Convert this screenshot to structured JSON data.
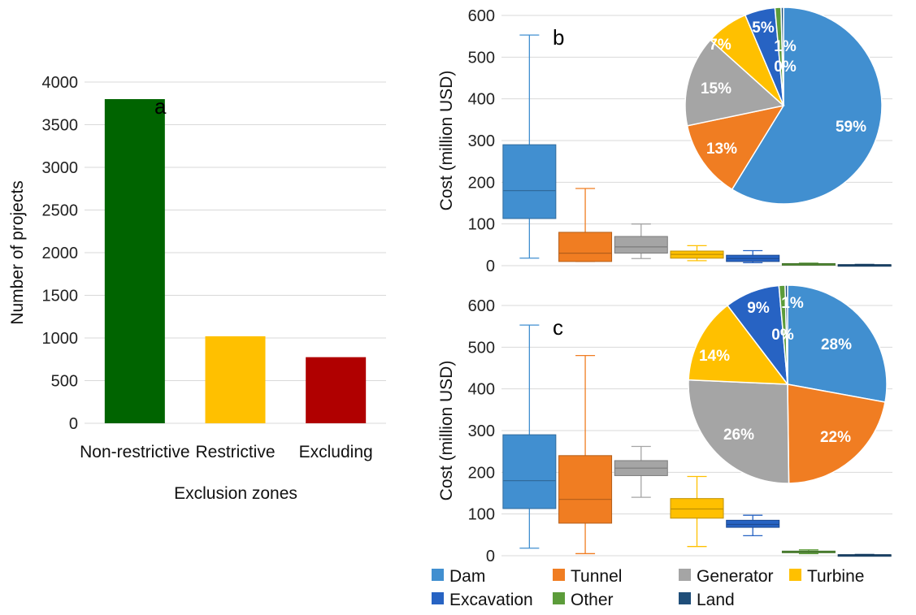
{
  "chart_data": [
    {
      "panel": "a",
      "type": "bar",
      "categories": [
        "Non-restrictive",
        "Restrictive",
        "Excluding"
      ],
      "values": [
        3800,
        1020,
        775
      ],
      "colors": [
        "#006400",
        "#FFC000",
        "#B00000"
      ],
      "xlabel": "Exclusion zones",
      "ylabel": "Number of projects",
      "ylim": [
        0,
        4000
      ],
      "yticks": [
        0,
        500,
        1000,
        1500,
        2000,
        2500,
        3000,
        3500,
        4000
      ],
      "grid": true
    },
    {
      "panel": "b",
      "type": "box",
      "ylabel": "Cost (million USD)",
      "ylim": [
        0,
        600
      ],
      "yticks": [
        0,
        100,
        200,
        300,
        400,
        500,
        600
      ],
      "grid": true,
      "series": [
        {
          "name": "Dam",
          "min": 18,
          "q1": 113,
          "median": 180,
          "q3": 290,
          "max": 553
        },
        {
          "name": "Tunnel",
          "min": 10,
          "q1": 10,
          "median": 30,
          "q3": 80,
          "max": 185
        },
        {
          "name": "Generator",
          "min": 17,
          "q1": 30,
          "median": 45,
          "q3": 70,
          "max": 100
        },
        {
          "name": "Turbine",
          "min": 12,
          "q1": 18,
          "median": 27,
          "q3": 35,
          "max": 48
        },
        {
          "name": "Excavation",
          "min": 7,
          "q1": 10,
          "median": 17,
          "q3": 25,
          "max": 36
        },
        {
          "name": "Other",
          "min": 2,
          "q1": 3,
          "median": 4,
          "q3": 5,
          "max": 6
        },
        {
          "name": "Land",
          "min": 1,
          "q1": 1.5,
          "median": 2,
          "q3": 2.5,
          "max": 3
        }
      ],
      "pie": {
        "slices": [
          {
            "name": "Dam",
            "value": 59,
            "label": "59%"
          },
          {
            "name": "Tunnel",
            "value": 13,
            "label": "13%"
          },
          {
            "name": "Generator",
            "value": 15,
            "label": "15%"
          },
          {
            "name": "Turbine",
            "value": 7,
            "label": "7%"
          },
          {
            "name": "Excavation",
            "value": 5,
            "label": "5%"
          },
          {
            "name": "Other",
            "value": 1,
            "label": "1%"
          },
          {
            "name": "Land",
            "value": 0.4,
            "label": "0%"
          }
        ]
      }
    },
    {
      "panel": "c",
      "type": "box",
      "ylabel": "Cost (million USD)",
      "ylim": [
        0,
        600
      ],
      "yticks": [
        0,
        100,
        200,
        300,
        400,
        500,
        600
      ],
      "grid": true,
      "series": [
        {
          "name": "Dam",
          "min": 18,
          "q1": 113,
          "median": 180,
          "q3": 290,
          "max": 553
        },
        {
          "name": "Tunnel",
          "min": 5,
          "q1": 78,
          "median": 135,
          "q3": 240,
          "max": 480
        },
        {
          "name": "Generator",
          "min": 140,
          "q1": 192,
          "median": 210,
          "q3": 228,
          "max": 262
        },
        {
          "name": "Turbine",
          "min": 22,
          "q1": 90,
          "median": 112,
          "q3": 137,
          "max": 190
        },
        {
          "name": "Excavation",
          "min": 48,
          "q1": 68,
          "median": 75,
          "q3": 85,
          "max": 97
        },
        {
          "name": "Other",
          "min": 5,
          "q1": 8,
          "median": 10,
          "q3": 11,
          "max": 14
        },
        {
          "name": "Land",
          "min": 1,
          "q1": 1.5,
          "median": 2,
          "q3": 2.5,
          "max": 3
        }
      ],
      "pie": {
        "slices": [
          {
            "name": "Dam",
            "value": 28,
            "label": "28%"
          },
          {
            "name": "Tunnel",
            "value": 22,
            "label": "22%"
          },
          {
            "name": "Generator",
            "value": 26,
            "label": "26%"
          },
          {
            "name": "Turbine",
            "value": 14,
            "label": "14%"
          },
          {
            "name": "Excavation",
            "value": 9,
            "label": "9%"
          },
          {
            "name": "Other",
            "value": 1,
            "label": "1%"
          },
          {
            "name": "Land",
            "value": 0.4,
            "label": "0%"
          }
        ]
      }
    }
  ],
  "component_colors": {
    "Dam": "#418FD0",
    "Tunnel": "#F07D22",
    "Generator": "#A5A5A5",
    "Turbine": "#FFC000",
    "Excavation": "#2763C3",
    "Other": "#5C9C3A",
    "Land": "#1F4E79"
  },
  "legend": {
    "placement": "bottom",
    "entries": [
      "Dam",
      "Tunnel",
      "Generator",
      "Turbine",
      "Excavation",
      "Other",
      "Land"
    ]
  }
}
